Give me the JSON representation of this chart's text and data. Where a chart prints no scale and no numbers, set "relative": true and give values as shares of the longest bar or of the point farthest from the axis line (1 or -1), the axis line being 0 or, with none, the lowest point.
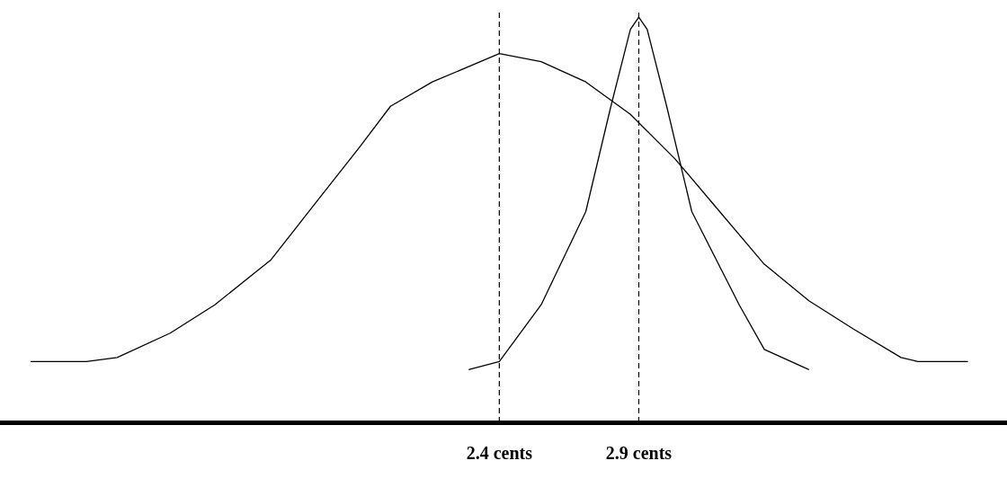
{
  "chart_data": {
    "type": "line",
    "relative": true,
    "xlim": [
      0.61,
      4.22
    ],
    "xticks": [
      {
        "value": 2.4,
        "label": "2.4 cents"
      },
      {
        "value": 2.9,
        "label": "2.9 cents"
      }
    ],
    "grid": false,
    "legend": false,
    "marker": "none",
    "line_style": "solid",
    "series": [
      {
        "color": "#000000",
        "x": [
          0.72,
          0.92,
          1.03,
          1.22,
          1.38,
          1.58,
          1.74,
          1.9,
          2.01,
          2.16,
          2.4,
          2.55,
          2.71,
          2.87,
          3.03,
          3.19,
          3.35,
          3.51,
          3.67,
          3.84,
          3.9,
          4.08
        ],
        "values": [
          0.15,
          0.15,
          0.16,
          0.22,
          0.29,
          0.4,
          0.54,
          0.68,
          0.78,
          0.84,
          0.91,
          0.89,
          0.84,
          0.76,
          0.65,
          0.52,
          0.39,
          0.3,
          0.23,
          0.16,
          0.15,
          0.15
        ]
      },
      {
        "color": "#000000",
        "x": [
          2.29,
          2.4,
          2.55,
          2.71,
          2.8,
          2.87,
          2.9,
          2.93,
          3.0,
          3.09,
          3.26,
          3.35,
          3.51
        ],
        "values": [
          0.13,
          0.15,
          0.29,
          0.52,
          0.78,
          0.97,
          1,
          0.97,
          0.78,
          0.52,
          0.29,
          0.18,
          0.13
        ]
      }
    ],
    "ref_lines": [
      {
        "axis": "x",
        "value": 2.4,
        "color": "#000000",
        "line_style": "dashed"
      },
      {
        "axis": "x",
        "value": 2.9,
        "color": "#000000",
        "line_style": "dashed"
      }
    ]
  }
}
